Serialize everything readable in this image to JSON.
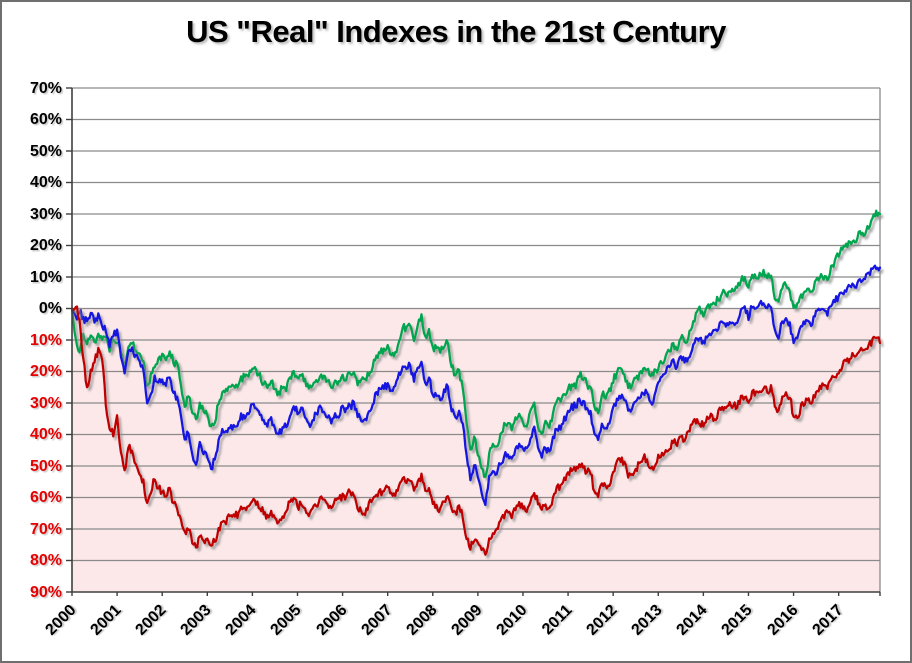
{
  "chart_data": {
    "type": "line",
    "title": "US \"Real\" Indexes in the 21st Century",
    "x_range": "Jan 2000 to Dec 2017, monthly",
    "months": 216,
    "ylim": [
      -90,
      70
    ],
    "y_tick_interval": 10,
    "grid": "horizontal-only",
    "legend": "none",
    "x_tick_labels": [
      "2000",
      "2001",
      "2002",
      "2003",
      "2004",
      "2005",
      "2006",
      "2007",
      "2008",
      "2009",
      "2010",
      "2011",
      "2012",
      "2013",
      "2014",
      "2015",
      "2016",
      "2017"
    ],
    "y_ticks": [
      {
        "value": 70,
        "label": "70%"
      },
      {
        "value": 60,
        "label": "60%"
      },
      {
        "value": 50,
        "label": "50%"
      },
      {
        "value": 40,
        "label": "40%"
      },
      {
        "value": 30,
        "label": "30%"
      },
      {
        "value": 20,
        "label": "20%"
      },
      {
        "value": 10,
        "label": "10%"
      },
      {
        "value": 0,
        "label": "0%"
      },
      {
        "value": -10,
        "label": "10%"
      },
      {
        "value": -20,
        "label": "20%"
      },
      {
        "value": -30,
        "label": "30%"
      },
      {
        "value": -40,
        "label": "40%"
      },
      {
        "value": -50,
        "label": "50%"
      },
      {
        "value": -60,
        "label": "60%"
      },
      {
        "value": -70,
        "label": "70%"
      },
      {
        "value": -80,
        "label": "80%"
      },
      {
        "value": -90,
        "label": "90%"
      }
    ],
    "colors": {
      "positive_label": "#000000",
      "negative_label": "#e60000",
      "gridline": "#8a8a8a",
      "axis": "#3f3f3f",
      "plot_bg_positive": "#ffffff",
      "plot_bg_negative": "#fce8e9",
      "frame_border": "#6f6f6f"
    },
    "series": [
      {
        "name": "green",
        "color": "#00a550",
        "values": [
          0,
          -10,
          -14,
          -8,
          -11,
          -9,
          -11,
          -8,
          -10,
          -9,
          -13,
          -10,
          -11,
          -14,
          -18,
          -12,
          -11,
          -13,
          -15,
          -17,
          -25,
          -21,
          -18,
          -16,
          -15,
          -16,
          -14,
          -17,
          -18,
          -24,
          -31,
          -28,
          -33,
          -35,
          -30,
          -32,
          -34,
          -38,
          -36,
          -30,
          -27,
          -26,
          -25,
          -24,
          -25,
          -22,
          -22,
          -21,
          -19,
          -20,
          -21,
          -24,
          -25,
          -23,
          -25,
          -27,
          -25,
          -26,
          -22,
          -20,
          -22,
          -21,
          -23,
          -26,
          -24,
          -23,
          -21,
          -22,
          -23,
          -25,
          -23,
          -23,
          -21,
          -22,
          -21,
          -20,
          -24,
          -23,
          -23,
          -21,
          -18,
          -15,
          -14,
          -13,
          -12,
          -15,
          -14,
          -10,
          -6,
          -6,
          -5,
          -10,
          -6,
          -2,
          -9,
          -7,
          -12,
          -13,
          -14,
          -12,
          -11,
          -18,
          -21,
          -20,
          -25,
          -37,
          -45,
          -41,
          -46,
          -51,
          -54,
          -46,
          -43,
          -44,
          -40,
          -37,
          -37,
          -38,
          -35,
          -34,
          -36,
          -37,
          -33,
          -30,
          -38,
          -40,
          -36,
          -38,
          -33,
          -29,
          -29,
          -27,
          -26,
          -24,
          -25,
          -21,
          -22,
          -24,
          -25,
          -31,
          -33,
          -27,
          -28,
          -26,
          -23,
          -20,
          -19,
          -21,
          -25,
          -24,
          -22,
          -21,
          -19,
          -19,
          -21,
          -20,
          -19,
          -17,
          -15,
          -13,
          -11,
          -13,
          -9,
          -11,
          -9,
          -6,
          -2,
          0,
          -2,
          0,
          1,
          2,
          3,
          5,
          4,
          6,
          5,
          6,
          9,
          10,
          7,
          11,
          10,
          11,
          12,
          10,
          10,
          3,
          2,
          6,
          8,
          5,
          0,
          1,
          4,
          5,
          6,
          5,
          9,
          10,
          9,
          9,
          13,
          15,
          17,
          19,
          20,
          21,
          21,
          23,
          24,
          24,
          26,
          29,
          31,
          30
        ]
      },
      {
        "name": "blue",
        "color": "#1414e0",
        "values": [
          0,
          -3,
          -1,
          -3,
          -4,
          -2,
          -4,
          -2,
          -6,
          -7,
          -12,
          -9,
          -7,
          -15,
          -21,
          -14,
          -13,
          -15,
          -17,
          -19,
          -30,
          -27,
          -22,
          -23,
          -23,
          -24,
          -22,
          -27,
          -28,
          -34,
          -42,
          -39,
          -46,
          -49,
          -43,
          -46,
          -47,
          -51,
          -48,
          -42,
          -38,
          -39,
          -38,
          -37,
          -38,
          -34,
          -35,
          -33,
          -31,
          -32,
          -34,
          -36,
          -37,
          -35,
          -38,
          -40,
          -38,
          -37,
          -34,
          -31,
          -33,
          -32,
          -34,
          -37,
          -35,
          -34,
          -31,
          -33,
          -34,
          -36,
          -33,
          -34,
          -31,
          -32,
          -31,
          -30,
          -34,
          -36,
          -35,
          -33,
          -30,
          -27,
          -26,
          -25,
          -24,
          -26,
          -25,
          -21,
          -18,
          -19,
          -18,
          -23,
          -19,
          -17,
          -24,
          -22,
          -27,
          -28,
          -29,
          -26,
          -25,
          -32,
          -34,
          -33,
          -36,
          -47,
          -54,
          -50,
          -53,
          -58,
          -63,
          -53,
          -51,
          -52,
          -49,
          -47,
          -46,
          -47,
          -45,
          -43,
          -44,
          -45,
          -41,
          -38,
          -44,
          -47,
          -44,
          -46,
          -41,
          -38,
          -38,
          -35,
          -33,
          -31,
          -31,
          -29,
          -30,
          -32,
          -33,
          -40,
          -42,
          -37,
          -38,
          -36,
          -32,
          -29,
          -28,
          -29,
          -33,
          -32,
          -30,
          -29,
          -27,
          -27,
          -30,
          -28,
          -24,
          -22,
          -20,
          -19,
          -16,
          -19,
          -15,
          -17,
          -15,
          -13,
          -10,
          -9,
          -11,
          -9,
          -8,
          -7,
          -6,
          -4,
          -6,
          -4,
          -5,
          -4,
          -1,
          0,
          -3,
          1,
          0,
          1,
          2,
          0,
          1,
          -7,
          -9,
          -4,
          -3,
          -5,
          -11,
          -10,
          -6,
          -5,
          -4,
          -5,
          -1,
          0,
          -1,
          -2,
          1,
          2,
          4,
          5,
          6,
          7,
          7,
          8,
          9,
          10,
          11,
          12,
          13,
          13
        ]
      },
      {
        "name": "red",
        "color": "#c00000",
        "values": [
          0,
          1,
          -3,
          -16,
          -25,
          -20,
          -17,
          -13,
          -16,
          -30,
          -38,
          -40,
          -34,
          -45,
          -52,
          -44,
          -45,
          -49,
          -52,
          -55,
          -62,
          -58,
          -54,
          -57,
          -58,
          -60,
          -57,
          -62,
          -64,
          -67,
          -71,
          -70,
          -74,
          -76,
          -72,
          -74,
          -73,
          -75,
          -74,
          -70,
          -68,
          -68,
          -66,
          -65,
          -66,
          -63,
          -63,
          -63,
          -61,
          -62,
          -63,
          -65,
          -66,
          -64,
          -67,
          -68,
          -66,
          -64,
          -61,
          -60,
          -63,
          -62,
          -63,
          -66,
          -64,
          -63,
          -60,
          -61,
          -62,
          -63,
          -61,
          -61,
          -59,
          -60,
          -58,
          -59,
          -63,
          -64,
          -65,
          -62,
          -61,
          -59,
          -58,
          -58,
          -57,
          -59,
          -59,
          -56,
          -54,
          -55,
          -55,
          -58,
          -55,
          -53,
          -58,
          -57,
          -62,
          -63,
          -64,
          -61,
          -59,
          -64,
          -65,
          -63,
          -66,
          -73,
          -76,
          -74,
          -75,
          -77,
          -78,
          -73,
          -71,
          -70,
          -67,
          -66,
          -65,
          -66,
          -64,
          -62,
          -63,
          -64,
          -61,
          -58,
          -62,
          -64,
          -62,
          -64,
          -60,
          -57,
          -56,
          -54,
          -52,
          -51,
          -51,
          -49,
          -50,
          -52,
          -52,
          -58,
          -60,
          -56,
          -57,
          -56,
          -52,
          -49,
          -48,
          -49,
          -53,
          -52,
          -51,
          -49,
          -47,
          -48,
          -51,
          -50,
          -47,
          -46,
          -45,
          -44,
          -42,
          -44,
          -40,
          -42,
          -39,
          -37,
          -36,
          -36,
          -37,
          -34,
          -34,
          -35,
          -33,
          -31,
          -32,
          -30,
          -31,
          -31,
          -28,
          -28,
          -30,
          -26,
          -27,
          -26,
          -25,
          -26,
          -25,
          -31,
          -33,
          -28,
          -27,
          -28,
          -34,
          -35,
          -31,
          -30,
          -29,
          -30,
          -26,
          -25,
          -24,
          -25,
          -23,
          -22,
          -20,
          -18,
          -17,
          -16,
          -15,
          -15,
          -13,
          -13,
          -12,
          -10,
          -9,
          -11
        ]
      }
    ]
  }
}
